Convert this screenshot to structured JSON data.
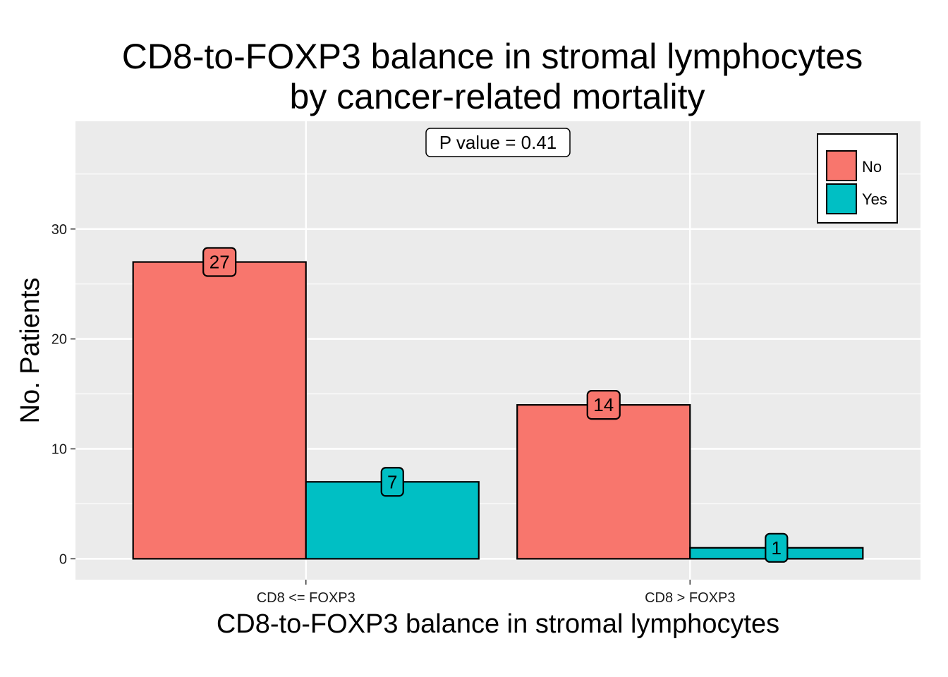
{
  "chart_data": {
    "type": "bar",
    "title_lines": [
      "CD8-to-FOXP3 balance in stromal lymphocytes",
      "by cancer-related mortality"
    ],
    "xlabel": "CD8-to-FOXP3 balance in stromal lymphocytes",
    "ylabel": "No. Patients",
    "categories": [
      "CD8 <= FOXP3",
      "CD8 > FOXP3"
    ],
    "series": [
      {
        "name": "No",
        "values": [
          27,
          14
        ],
        "color": "#F8766D"
      },
      {
        "name": "Yes",
        "values": [
          7,
          1
        ],
        "color": "#00BFC4"
      }
    ],
    "y_ticks": [
      0,
      10,
      20,
      30
    ],
    "y_tick_labels": [
      "0",
      "10",
      "20",
      "30"
    ],
    "ylim": [
      -1.9,
      39.8
    ],
    "grid": true,
    "panel_background": "#EBEBEB",
    "legend_position": "top-right",
    "annotation": "P value = 0.41"
  }
}
